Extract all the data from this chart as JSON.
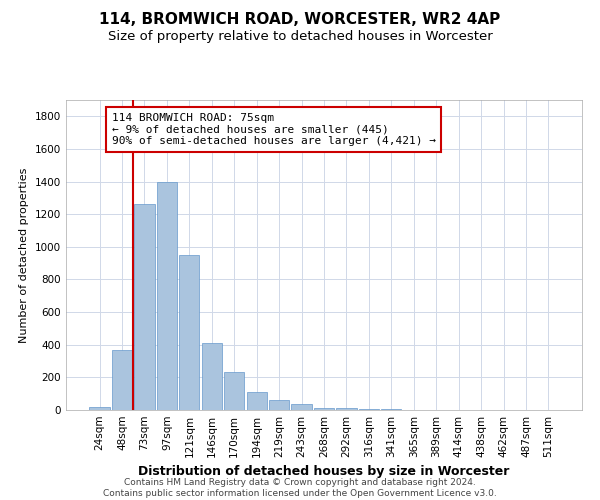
{
  "title": "114, BROMWICH ROAD, WORCESTER, WR2 4AP",
  "subtitle": "Size of property relative to detached houses in Worcester",
  "xlabel": "Distribution of detached houses by size in Worcester",
  "ylabel": "Number of detached properties",
  "footnote": "Contains HM Land Registry data © Crown copyright and database right 2024.\nContains public sector information licensed under the Open Government Licence v3.0.",
  "categories": [
    "24sqm",
    "48sqm",
    "73sqm",
    "97sqm",
    "121sqm",
    "146sqm",
    "170sqm",
    "194sqm",
    "219sqm",
    "243sqm",
    "268sqm",
    "292sqm",
    "316sqm",
    "341sqm",
    "365sqm",
    "389sqm",
    "414sqm",
    "438sqm",
    "462sqm",
    "487sqm",
    "511sqm"
  ],
  "values": [
    20,
    370,
    1260,
    1395,
    950,
    410,
    230,
    110,
    60,
    35,
    15,
    10,
    8,
    5,
    3,
    2,
    1,
    1,
    1,
    0,
    0
  ],
  "bar_color": "#aac4de",
  "bar_edge_color": "#6699cc",
  "vline_color": "#cc0000",
  "vline_pos": 1.5,
  "annotation_box_text": "114 BROMWICH ROAD: 75sqm\n← 9% of detached houses are smaller (445)\n90% of semi-detached houses are larger (4,421) →",
  "box_edge_color": "#cc0000",
  "ylim": [
    0,
    1900
  ],
  "yticks": [
    0,
    200,
    400,
    600,
    800,
    1000,
    1200,
    1400,
    1600,
    1800
  ],
  "title_fontsize": 11,
  "subtitle_fontsize": 9.5,
  "annotation_fontsize": 8,
  "axis_fontsize": 7.5,
  "xlabel_fontsize": 9,
  "ylabel_fontsize": 8,
  "footnote_fontsize": 6.5,
  "background_color": "#ffffff",
  "grid_color": "#d0d8e8"
}
